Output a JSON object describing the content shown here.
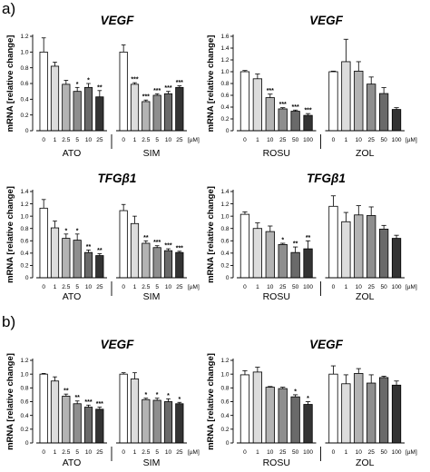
{
  "panel_labels": [
    "a)",
    "b)"
  ],
  "unit_label": "[µM]",
  "colors": {
    "drug_shades": [
      "#ffffff",
      "#dcdcdc",
      "#b3b3b3",
      "#8e8e8e",
      "#6a6a6a",
      "#333333"
    ],
    "axis": "#000000"
  },
  "chart_data": [
    {
      "type": "bar",
      "panel": "a)",
      "title": "VEGF",
      "ylabel": "mRNA [relative change]",
      "ylim": [
        0,
        1.2
      ],
      "yticks": [
        "0",
        "0.2",
        "0.4",
        "0.6",
        "0.8",
        "1.0",
        "1.2"
      ],
      "groups": [
        {
          "name": "ATO",
          "categories": [
            "0",
            "1",
            "2.5",
            "5",
            "10",
            "25"
          ],
          "values": [
            1.0,
            0.82,
            0.59,
            0.5,
            0.55,
            0.43
          ],
          "errors": [
            0.18,
            0.05,
            0.05,
            0.05,
            0.05,
            0.08
          ],
          "sig": [
            "",
            "",
            "",
            "*",
            "*",
            "**"
          ]
        },
        {
          "name": "SIM",
          "categories": [
            "0",
            "1",
            "2.5",
            "5",
            "10",
            "25"
          ],
          "values": [
            1.0,
            0.59,
            0.37,
            0.45,
            0.47,
            0.55
          ],
          "errors": [
            0.09,
            0.02,
            0.02,
            0.02,
            0.03,
            0.02
          ],
          "sig": [
            "",
            "***",
            "***",
            "***",
            "***",
            "***"
          ]
        }
      ]
    },
    {
      "type": "bar",
      "panel": "a)",
      "title": "VEGF",
      "ylabel": "mRNA [relative change]",
      "ylim": [
        0,
        1.6
      ],
      "yticks": [
        "0",
        "0.2",
        "0.4",
        "0.6",
        "0.8",
        "1.0",
        "1.2",
        "1.4",
        "1.6"
      ],
      "groups": [
        {
          "name": "ROSU",
          "categories": [
            "0",
            "1",
            "10",
            "25",
            "50",
            "100"
          ],
          "values": [
            1.0,
            0.88,
            0.56,
            0.37,
            0.33,
            0.26
          ],
          "errors": [
            0.02,
            0.08,
            0.06,
            0.02,
            0.02,
            0.03
          ],
          "sig": [
            "",
            "",
            "***",
            "***",
            "***",
            "***"
          ]
        },
        {
          "name": "ZOL",
          "categories": [
            "0",
            "1",
            "10",
            "25",
            "50",
            "100"
          ],
          "values": [
            1.0,
            1.17,
            1.01,
            0.79,
            0.63,
            0.36
          ],
          "errors": [
            0.01,
            0.38,
            0.16,
            0.12,
            0.1,
            0.03
          ],
          "sig": [
            "",
            "",
            "",
            "",
            "",
            ""
          ]
        }
      ]
    },
    {
      "type": "bar",
      "panel": "a)",
      "title": "TFGβ1",
      "ylabel": "mRNA [relative change]",
      "ylim": [
        0,
        1.4
      ],
      "yticks": [
        "0",
        "0.2",
        "0.4",
        "0.6",
        "0.8",
        "1.0",
        "1.2",
        "1.4"
      ],
      "groups": [
        {
          "name": "ATO",
          "categories": [
            "0",
            "1",
            "2.5",
            "5",
            "10",
            "25"
          ],
          "values": [
            1.13,
            0.81,
            0.64,
            0.61,
            0.41,
            0.36
          ],
          "errors": [
            0.14,
            0.11,
            0.07,
            0.1,
            0.04,
            0.03
          ],
          "sig": [
            "",
            "",
            "*",
            "*",
            "**",
            "**"
          ]
        },
        {
          "name": "SIM",
          "categories": [
            "0",
            "1",
            "2.5",
            "5",
            "10",
            "25"
          ],
          "values": [
            1.09,
            0.88,
            0.56,
            0.49,
            0.44,
            0.41
          ],
          "errors": [
            0.1,
            0.12,
            0.04,
            0.03,
            0.03,
            0.02
          ],
          "sig": [
            "",
            "",
            "**",
            "***",
            "***",
            "***"
          ]
        }
      ]
    },
    {
      "type": "bar",
      "panel": "a)",
      "title": "TFGβ1",
      "ylabel": "mRNA [relative change]",
      "ylim": [
        0,
        1.4
      ],
      "yticks": [
        "0",
        "0.2",
        "0.4",
        "0.6",
        "0.8",
        "1.0",
        "1.2",
        "1.4"
      ],
      "groups": [
        {
          "name": "ROSU",
          "categories": [
            "0",
            "1",
            "10",
            "25",
            "50",
            "100"
          ],
          "values": [
            1.03,
            0.8,
            0.75,
            0.54,
            0.41,
            0.47
          ],
          "errors": [
            0.04,
            0.09,
            0.09,
            0.02,
            0.09,
            0.13
          ],
          "sig": [
            "",
            "",
            "",
            "*",
            "**",
            "**"
          ]
        },
        {
          "name": "ZOL",
          "categories": [
            "0",
            "1",
            "10",
            "25",
            "50",
            "100"
          ],
          "values": [
            1.16,
            0.91,
            1.02,
            1.01,
            0.79,
            0.64
          ],
          "errors": [
            0.17,
            0.15,
            0.15,
            0.14,
            0.06,
            0.05
          ],
          "sig": [
            "",
            "",
            "",
            "",
            "",
            ""
          ]
        }
      ]
    },
    {
      "type": "bar",
      "panel": "b)",
      "title": "VEGF",
      "ylabel": "mRNA [relative change]",
      "ylim": [
        0,
        1.2
      ],
      "yticks": [
        "0",
        "0.2",
        "0.4",
        "0.6",
        "0.8",
        "1.0",
        "1.2"
      ],
      "groups": [
        {
          "name": "ATO",
          "categories": [
            "0",
            "1",
            "2.5",
            "5",
            "10",
            "25"
          ],
          "values": [
            1.0,
            0.9,
            0.68,
            0.57,
            0.52,
            0.49
          ],
          "errors": [
            0.01,
            0.06,
            0.03,
            0.04,
            0.03,
            0.03
          ],
          "sig": [
            "",
            "",
            "**",
            "**",
            "***",
            "***"
          ]
        },
        {
          "name": "SIM",
          "categories": [
            "0",
            "1",
            "2.5",
            "5",
            "10",
            "25"
          ],
          "values": [
            1.0,
            0.93,
            0.63,
            0.62,
            0.6,
            0.57
          ],
          "errors": [
            0.02,
            0.09,
            0.02,
            0.03,
            0.04,
            0.02
          ],
          "sig": [
            "",
            "",
            "*",
            "*",
            "*",
            "*"
          ]
        }
      ]
    },
    {
      "type": "bar",
      "panel": "b)",
      "title": "VEGF",
      "ylabel": "mRNA [relative change]",
      "ylim": [
        0,
        1.2
      ],
      "yticks": [
        "0",
        "0.2",
        "0.4",
        "0.6",
        "0.8",
        "1.0",
        "1.2"
      ],
      "groups": [
        {
          "name": "ROSU",
          "categories": [
            "0",
            "1",
            "10",
            "25",
            "50",
            "100"
          ],
          "values": [
            0.99,
            1.03,
            0.81,
            0.79,
            0.67,
            0.56
          ],
          "errors": [
            0.06,
            0.07,
            0.01,
            0.02,
            0.03,
            0.04
          ],
          "sig": [
            "",
            "",
            "",
            "",
            "*",
            "*"
          ]
        },
        {
          "name": "ZOL",
          "categories": [
            "0",
            "1",
            "10",
            "25",
            "50",
            "100"
          ],
          "values": [
            1.0,
            0.86,
            1.01,
            0.87,
            0.95,
            0.84
          ],
          "errors": [
            0.12,
            0.13,
            0.07,
            0.12,
            0.02,
            0.06
          ],
          "sig": [
            "",
            "",
            "",
            "",
            "",
            ""
          ]
        }
      ]
    }
  ]
}
